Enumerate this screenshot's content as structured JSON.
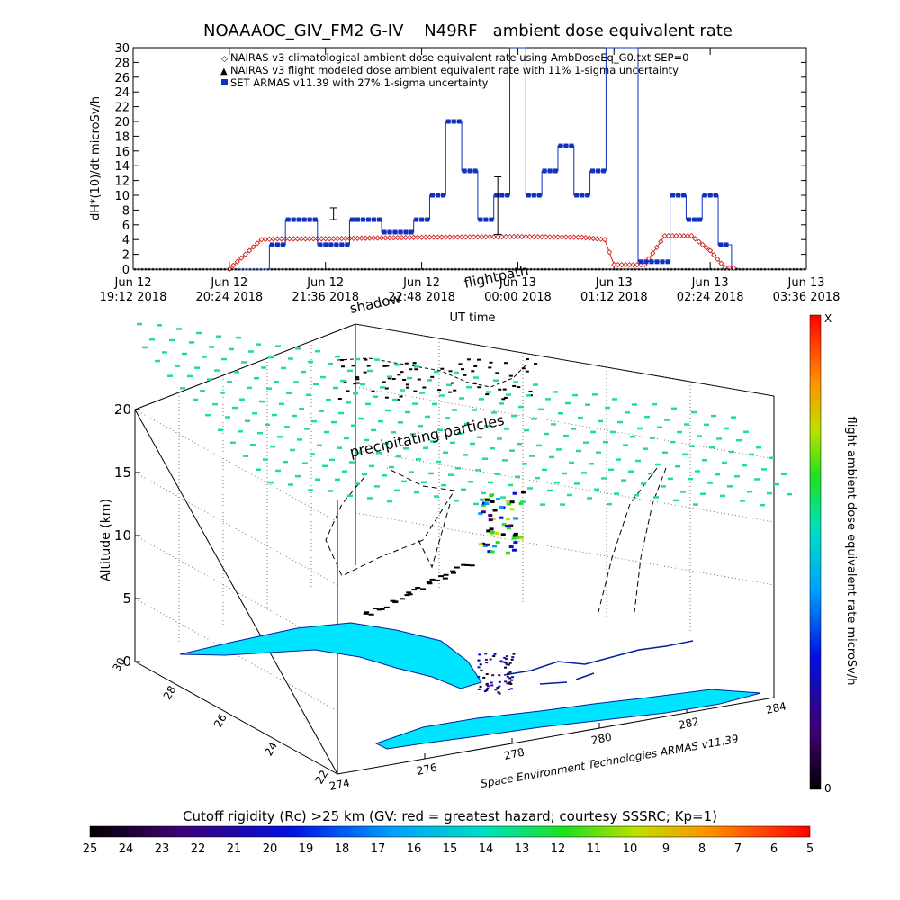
{
  "chart_data": [
    {
      "type": "line",
      "title": "NOAAAOC_GIV_FM2 G-IV    N49RF   ambient dose equivalent rate",
      "ylabel": "dH*(10)/dt microSv/h",
      "xlabel": "UT time",
      "ylim": [
        0,
        30
      ],
      "yticks": [
        0,
        2,
        4,
        6,
        8,
        10,
        12,
        14,
        16,
        18,
        20,
        22,
        24,
        26,
        28,
        30
      ],
      "xlim": [
        "2018-06-12 19:12",
        "2018-06-13 03:36"
      ],
      "xticks": [
        {
          "top": "Jun 12",
          "bottom": "19:12 2018"
        },
        {
          "top": "Jun 12",
          "bottom": "20:24 2018"
        },
        {
          "top": "Jun 12",
          "bottom": "21:36 2018"
        },
        {
          "top": "Jun 12",
          "bottom": "22:48 2018"
        },
        {
          "top": "Jun 13",
          "bottom": "00:00 2018"
        },
        {
          "top": "Jun 13",
          "bottom": "01:12 2018"
        },
        {
          "top": "Jun 13",
          "bottom": "02:24 2018"
        },
        {
          "top": "Jun 13",
          "bottom": "03:36 2018"
        }
      ],
      "legend": [
        {
          "label": "NAIRAS v3 climatological ambient dose equivalent rate using AmbDoseEq_G0.txt SEP=0",
          "color": "#d62020",
          "marker": "diamond"
        },
        {
          "label": "NAIRAS v3 flight modeled dose ambient equivalent rate with 11% 1-sigma uncertainty",
          "color": "#000000",
          "marker": "triangle"
        },
        {
          "label": "SET ARMAS v11.39 with 27% 1-sigma uncertainty",
          "color": "#1030c0",
          "marker": "square"
        }
      ],
      "series": [
        {
          "name": "NAIRAS v3 climatological ambient dose equivalent rate using AmbDoseEq_G0.txt SEP=0",
          "x": [
            "2018-06-12 20:24",
            "2018-06-12 20:48",
            "2018-06-12 21:00",
            "2018-06-12 21:36",
            "2018-06-12 22:48",
            "2018-06-13 00:00",
            "2018-06-13 00:48",
            "2018-06-13 01:05",
            "2018-06-13 01:12",
            "2018-06-13 01:35",
            "2018-06-13 01:50",
            "2018-06-13 02:10",
            "2018-06-13 02:24",
            "2018-06-13 02:35",
            "2018-06-13 02:45"
          ],
          "y": [
            0,
            4,
            4.1,
            4.1,
            4.3,
            4.4,
            4.3,
            4.0,
            0.6,
            0.6,
            4.5,
            4.5,
            2.5,
            0.2,
            0.1
          ]
        },
        {
          "name": "NAIRAS v3 flight modeled dose ambient equivalent rate with 11% 1-sigma uncertainty",
          "x": [
            "2018-06-12 19:12",
            "2018-06-13 03:36"
          ],
          "y": [
            0,
            0
          ]
        },
        {
          "name": "SET ARMAS v11.39 with 27% 1-sigma uncertainty",
          "x": [
            "2018-06-12 20:30",
            "2018-06-12 20:54",
            "2018-06-12 21:06",
            "2018-06-12 21:30",
            "2018-06-12 21:54",
            "2018-06-12 22:18",
            "2018-06-12 22:42",
            "2018-06-12 22:54",
            "2018-06-12 23:06",
            "2018-06-12 23:18",
            "2018-06-12 23:30",
            "2018-06-12 23:42",
            "2018-06-12 23:54",
            "2018-06-13 00:06",
            "2018-06-13 00:18",
            "2018-06-13 00:30",
            "2018-06-13 00:42",
            "2018-06-13 00:54",
            "2018-06-13 01:06",
            "2018-06-13 01:30",
            "2018-06-13 01:54",
            "2018-06-13 02:06",
            "2018-06-13 02:18",
            "2018-06-13 02:30",
            "2018-06-13 02:40"
          ],
          "y": [
            0,
            3.3,
            6.7,
            3.3,
            6.7,
            5,
            6.7,
            10,
            20,
            13.3,
            6.7,
            10,
            30,
            10,
            13.3,
            16.7,
            10,
            13.3,
            30,
            1,
            10,
            6.7,
            10,
            3.3,
            0
          ]
        }
      ]
    },
    {
      "type": "scatter",
      "title": "",
      "zlabel": "Altitude (km)",
      "zticks": [
        0,
        5,
        10,
        15,
        20
      ],
      "xticks": [
        274,
        276,
        278,
        280,
        282,
        284
      ],
      "yticks": [
        22,
        24,
        26,
        28,
        30
      ],
      "labels": [
        "shadow",
        "flightpath",
        "precipitating particles"
      ],
      "credit": "Space Environment Technologies ARMAS v11.39",
      "colorbar_right": {
        "label": "flight ambient dose equivalent rate microSv/h",
        "top": "X",
        "bottom": "0"
      },
      "colorbar_bottom": {
        "label": "Cutoff rigidity (Rc) >25 km (GV: red = greatest hazard; courtesy SSSRC; Kp=1)",
        "ticks": [
          25,
          24,
          23,
          22,
          21,
          20,
          19,
          18,
          17,
          16,
          15,
          14,
          13,
          12,
          11,
          10,
          9,
          8,
          7,
          6,
          5
        ]
      }
    }
  ]
}
